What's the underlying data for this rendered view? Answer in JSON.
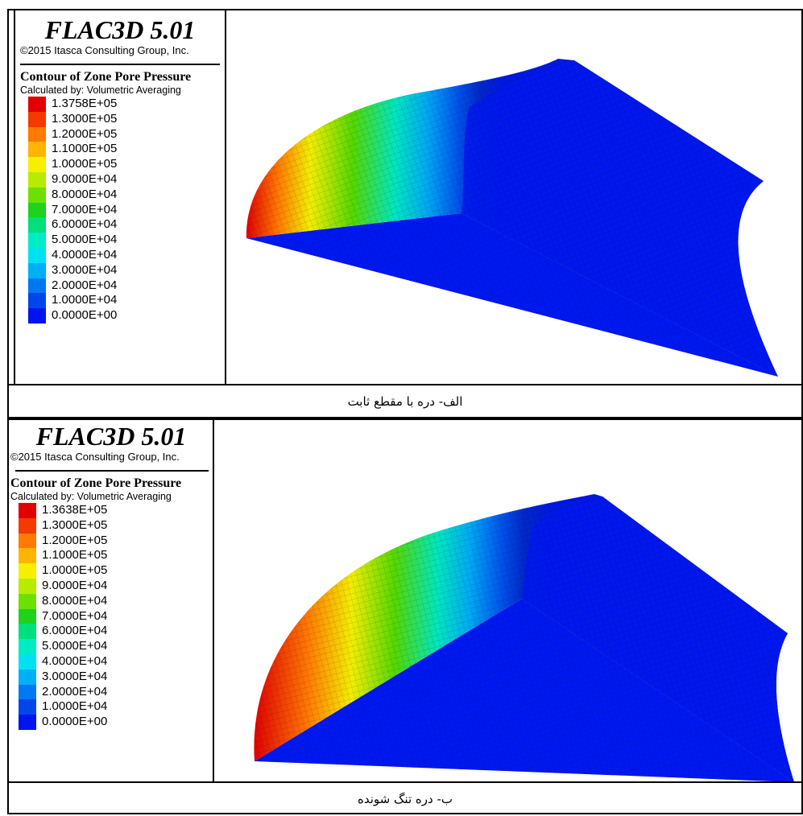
{
  "figures": [
    {
      "software_title": "FLAC3D 5.01",
      "copyright": "©2015 Itasca Consulting Group, Inc.",
      "contour_title": "Contour of Zone Pore Pressure",
      "calc_method": "Calculated by: Volumetric Averaging",
      "scale": [
        {
          "label": "1.3758E+05",
          "color": "#e30000"
        },
        {
          "label": "1.3000E+05",
          "color": "#f43a00"
        },
        {
          "label": "1.2000E+05",
          "color": "#ff7a00"
        },
        {
          "label": "1.1000E+05",
          "color": "#ffb400"
        },
        {
          "label": "1.0000E+05",
          "color": "#f5f000"
        },
        {
          "label": "9.0000E+04",
          "color": "#b6ec00"
        },
        {
          "label": "8.0000E+04",
          "color": "#6ee000"
        },
        {
          "label": "7.0000E+04",
          "color": "#1ed21e"
        },
        {
          "label": "6.0000E+04",
          "color": "#00e07a"
        },
        {
          "label": "5.0000E+04",
          "color": "#00ecc4"
        },
        {
          "label": "4.0000E+04",
          "color": "#00e2f2"
        },
        {
          "label": "3.0000E+04",
          "color": "#00b0f6"
        },
        {
          "label": "2.0000E+04",
          "color": "#0078f2"
        },
        {
          "label": "1.0000E+04",
          "color": "#0046ea"
        },
        {
          "label": "0.0000E+00",
          "color": "#0014f0"
        }
      ],
      "caption": "الف- دره با مقطع ثابت"
    },
    {
      "software_title": "FLAC3D 5.01",
      "copyright": "©2015 Itasca Consulting Group, Inc.",
      "contour_title": "Contour of Zone Pore Pressure",
      "calc_method": "Calculated by: Volumetric Averaging",
      "scale": [
        {
          "label": "1.3638E+05",
          "color": "#e30000"
        },
        {
          "label": "1.3000E+05",
          "color": "#f43a00"
        },
        {
          "label": "1.2000E+05",
          "color": "#ff7a00"
        },
        {
          "label": "1.1000E+05",
          "color": "#ffb400"
        },
        {
          "label": "1.0000E+05",
          "color": "#f5f000"
        },
        {
          "label": "9.0000E+04",
          "color": "#b6ec00"
        },
        {
          "label": "8.0000E+04",
          "color": "#6ee000"
        },
        {
          "label": "7.0000E+04",
          "color": "#1ed21e"
        },
        {
          "label": "6.0000E+04",
          "color": "#00e07a"
        },
        {
          "label": "5.0000E+04",
          "color": "#00ecc4"
        },
        {
          "label": "4.0000E+04",
          "color": "#00e2f2"
        },
        {
          "label": "3.0000E+04",
          "color": "#00b0f6"
        },
        {
          "label": "2.0000E+04",
          "color": "#0078f2"
        },
        {
          "label": "1.0000E+04",
          "color": "#0046ea"
        },
        {
          "label": "0.0000E+00",
          "color": "#0014f0"
        }
      ],
      "caption": "ب- دره تنگ شونده"
    }
  ]
}
